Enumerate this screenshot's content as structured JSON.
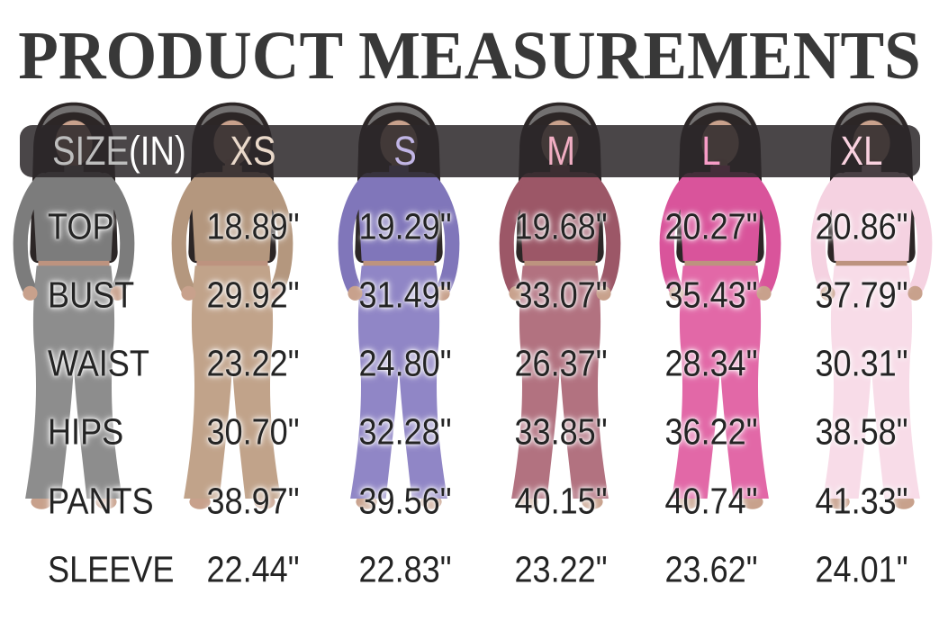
{
  "title": "PRODUCT MEASUREMENTS",
  "table": {
    "header": {
      "size_label": "SIZE",
      "size_unit": "(IN)",
      "size_label_color": "#bdbdbd",
      "size_unit_color": "#ffffff",
      "columns": [
        {
          "label": "XS",
          "color": "#ead9ca"
        },
        {
          "label": "S",
          "color": "#c1b5e5"
        },
        {
          "label": "M",
          "color": "#f1aec3"
        },
        {
          "label": "L",
          "color": "#f79cc7"
        },
        {
          "label": "XL",
          "color": "#fad2e0"
        }
      ]
    },
    "rows": [
      {
        "label": "TOP",
        "values": [
          "18.89\"",
          "19.29\"",
          "19.68\"",
          "20.27\"",
          "20.86\""
        ]
      },
      {
        "label": "BUST",
        "values": [
          "29.92\"",
          "31.49\"",
          "33.07\"",
          "35.43\"",
          "37.79\""
        ]
      },
      {
        "label": "WAIST",
        "values": [
          "23.22\"",
          "24.80\"",
          "26.37\"",
          "28.34\"",
          "30.31\""
        ]
      },
      {
        "label": "HIPS",
        "values": [
          "30.70\"",
          "32.28\"",
          "33.85\"",
          "36.22\"",
          "38.58\""
        ]
      },
      {
        "label": "PANTS",
        "values": [
          "38.97\"",
          "39.56\"",
          "40.15\"",
          "40.74\"",
          "41.33\""
        ]
      },
      {
        "label": "SLEEVE",
        "values": [
          "22.44\"",
          "22.83\"",
          "23.22\"",
          "23.62\"",
          "24.01\""
        ]
      }
    ]
  },
  "figures": [
    {
      "name": "model-grey",
      "top_color": "#7c7c7c",
      "pants_color": "#8d8d8d"
    },
    {
      "name": "model-khaki",
      "top_color": "#b4977e",
      "pants_color": "#c1a38a"
    },
    {
      "name": "model-purple",
      "top_color": "#8076ba",
      "pants_color": "#9086c6"
    },
    {
      "name": "model-mauve",
      "top_color": "#9c5767",
      "pants_color": "#b27280"
    },
    {
      "name": "model-hotpink",
      "top_color": "#d9549b",
      "pants_color": "#e268a7"
    },
    {
      "name": "model-lightpink",
      "top_color": "#f5d2e1",
      "pants_color": "#f8dce8"
    }
  ],
  "figure_common": {
    "skin_color": "#c8a18c",
    "skin_shadow_color": "#bd937f",
    "hair_color": "#2c2626",
    "hair_streak_color": "#a3a3a3"
  },
  "colors": {
    "title_text": "#383838",
    "row_text": "#242424",
    "header_bar": "rgba(44,40,42,0.86)",
    "background": "#ffffff"
  },
  "chart_data": {
    "type": "table",
    "title": "PRODUCT MEASUREMENTS",
    "unit": "inches",
    "columns": [
      "SIZE(IN)",
      "XS",
      "S",
      "M",
      "L",
      "XL"
    ],
    "rows": [
      [
        "TOP",
        18.89,
        19.29,
        19.68,
        20.27,
        20.86
      ],
      [
        "BUST",
        29.92,
        31.49,
        33.07,
        35.43,
        37.79
      ],
      [
        "WAIST",
        23.22,
        24.8,
        26.37,
        28.34,
        30.31
      ],
      [
        "HIPS",
        30.7,
        32.28,
        33.85,
        36.22,
        38.58
      ],
      [
        "PANTS",
        38.97,
        39.56,
        40.15,
        40.74,
        41.33
      ],
      [
        "SLEEVE",
        22.44,
        22.83,
        23.22,
        23.62,
        24.01
      ]
    ]
  }
}
